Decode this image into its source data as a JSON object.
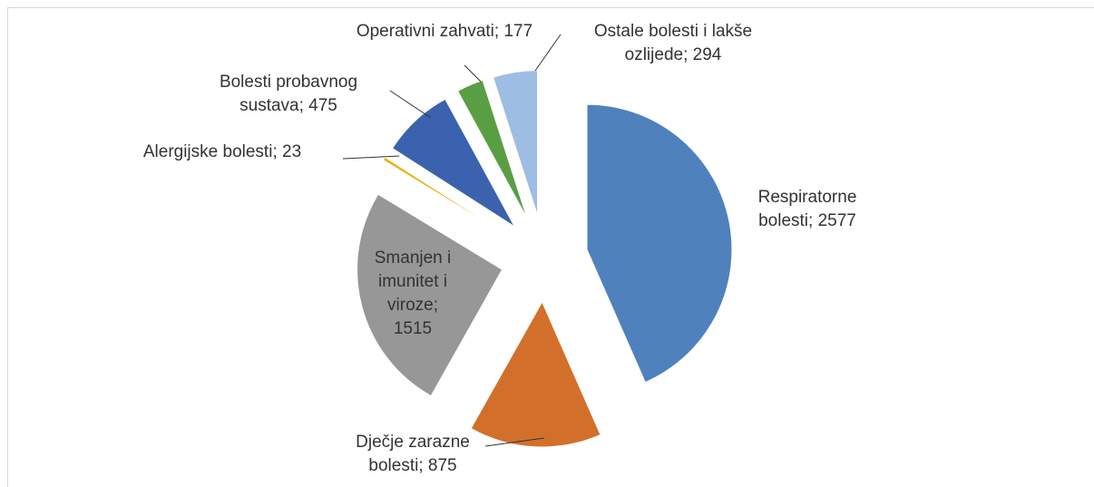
{
  "chart_data": {
    "type": "pie",
    "categories": [
      "Respiratorne bolesti",
      "Dječje zarazne bolesti",
      "Smanjen i imunitet i viroze",
      "Alergijske bolesti",
      "Bolesti probavnog sustava",
      "Operativni zahvati",
      "Ostale bolesti i lakše ozlijede"
    ],
    "values": [
      2577,
      875,
      1515,
      23,
      475,
      177,
      294
    ],
    "label_separator": "; ",
    "colors": [
      "#4f81bd",
      "#d2702b",
      "#979797",
      "#e8b21c",
      "#3a62ae",
      "#5a9e44",
      "#9dbde3"
    ]
  }
}
